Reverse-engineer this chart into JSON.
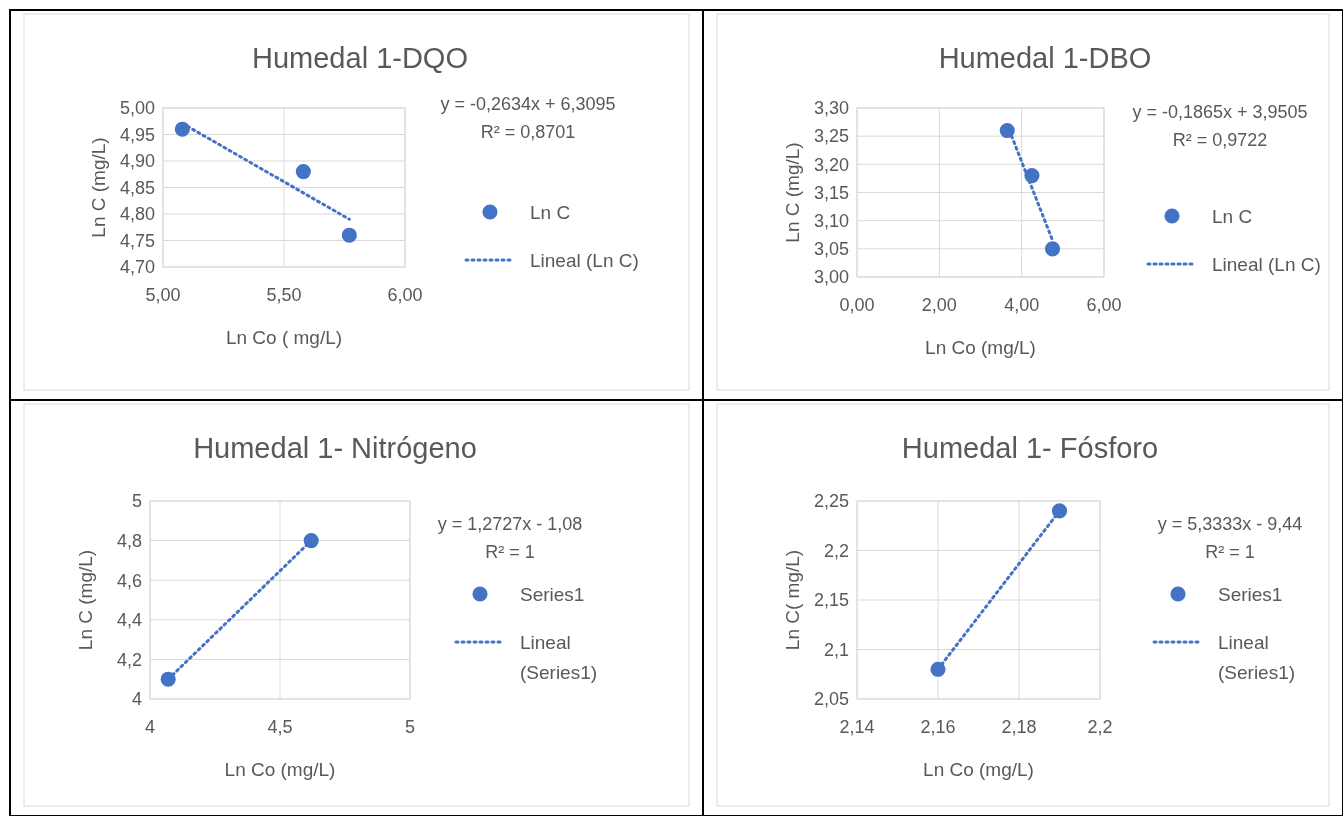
{
  "chart_data": [
    {
      "type": "scatter",
      "title": "Humedal 1-DQO",
      "xlabel": "Ln Co ( mg/L)",
      "ylabel": "Ln C (mg/L)",
      "annotations": [
        "y = -0,2634x + 6,3095",
        "R² = 0,8701"
      ],
      "xlim": [
        5,
        6
      ],
      "xticks": [
        {
          "value": 5,
          "label": "5,00"
        },
        {
          "value": 5.5,
          "label": "5,50"
        },
        {
          "value": 6,
          "label": "6,00"
        }
      ],
      "ylim": [
        4.7,
        5
      ],
      "yticks": [
        {
          "value": 4.7,
          "label": "4,70"
        },
        {
          "value": 4.75,
          "label": "4,75"
        },
        {
          "value": 4.8,
          "label": "4,80"
        },
        {
          "value": 4.85,
          "label": "4,85"
        },
        {
          "value": 4.9,
          "label": "4,90"
        },
        {
          "value": 4.95,
          "label": "4,95"
        },
        {
          "value": 5,
          "label": "5,00"
        }
      ],
      "grid": true,
      "legend": "right",
      "series": [
        {
          "name": "Ln C",
          "color": "#4472c4",
          "marker": "circle",
          "x": [
            5.08,
            5.58,
            5.77
          ],
          "values": [
            4.96,
            4.88,
            4.76
          ]
        },
        {
          "name": "Lineal (Ln C)",
          "type": "line",
          "color": "#4472c4",
          "marker": "none",
          "line_style": "dotted",
          "x": [
            5.08,
            5.77
          ],
          "values": [
            4.971,
            4.79
          ]
        }
      ]
    },
    {
      "type": "scatter",
      "title": "Humedal 1-DBO",
      "xlabel": "Ln Co (mg/L)",
      "ylabel": "Ln C (mg/L)",
      "annotations": [
        "y = -0,1865x + 3,9505",
        "R² = 0,9722"
      ],
      "xlim": [
        0,
        6
      ],
      "xticks": [
        {
          "value": 0,
          "label": "0,00"
        },
        {
          "value": 2,
          "label": "2,00"
        },
        {
          "value": 4,
          "label": "4,00"
        },
        {
          "value": 6,
          "label": "6,00"
        }
      ],
      "ylim": [
        3,
        3.3
      ],
      "yticks": [
        {
          "value": 3,
          "label": "3,00"
        },
        {
          "value": 3.05,
          "label": "3,05"
        },
        {
          "value": 3.1,
          "label": "3,10"
        },
        {
          "value": 3.15,
          "label": "3,15"
        },
        {
          "value": 3.2,
          "label": "3,20"
        },
        {
          "value": 3.25,
          "label": "3,25"
        },
        {
          "value": 3.3,
          "label": "3,30"
        }
      ],
      "grid": true,
      "legend": "right",
      "series": [
        {
          "name": "Ln C",
          "color": "#4472c4",
          "marker": "circle",
          "x": [
            3.65,
            4.25,
            4.75
          ],
          "values": [
            3.26,
            3.18,
            3.05
          ]
        },
        {
          "name": "Lineal (Ln C)",
          "type": "line",
          "color": "#4472c4",
          "marker": "none",
          "line_style": "dotted",
          "x": [
            3.65,
            4.75
          ],
          "values": [
            3.27,
            3.065
          ]
        }
      ]
    },
    {
      "type": "scatter",
      "title": "Humedal 1- Nitrógeno",
      "xlabel": "Ln Co (mg/L)",
      "ylabel": "Ln C (mg/L)",
      "annotations": [
        "y = 1,2727x - 1,08",
        "R² = 1"
      ],
      "xlim": [
        4,
        5
      ],
      "xticks": [
        4,
        {
          "value": 4.5,
          "label": "4,5"
        },
        5
      ],
      "ylim": [
        4,
        5
      ],
      "yticks": [
        4,
        {
          "value": 4.2,
          "label": "4,2"
        },
        {
          "value": 4.4,
          "label": "4,4"
        },
        {
          "value": 4.6,
          "label": "4,6"
        },
        {
          "value": 4.8,
          "label": "4,8"
        },
        5
      ],
      "grid": true,
      "legend": "right",
      "series": [
        {
          "name": "Series1",
          "color": "#4472c4",
          "marker": "circle",
          "x": [
            4.07,
            4.62
          ],
          "values": [
            4.1,
            4.8
          ]
        },
        {
          "name": "Lineal (Series1)",
          "type": "line",
          "color": "#4472c4",
          "marker": "none",
          "line_style": "dotted",
          "x": [
            4.07,
            4.62
          ],
          "values": [
            4.1,
            4.8
          ]
        }
      ]
    },
    {
      "type": "scatter",
      "title": "Humedal 1- Fósforo",
      "xlabel": "Ln Co (mg/L)",
      "ylabel": "Ln C( mg/L)",
      "annotations": [
        "y = 5,3333x - 9,44",
        "R² = 1"
      ],
      "xlim": [
        2.14,
        2.2
      ],
      "xticks": [
        {
          "value": 2.14,
          "label": "2,14"
        },
        {
          "value": 2.16,
          "label": "2,16"
        },
        {
          "value": 2.18,
          "label": "2,18"
        },
        {
          "value": 2.2,
          "label": "2,2"
        }
      ],
      "ylim": [
        2.05,
        2.25
      ],
      "yticks": [
        {
          "value": 2.05,
          "label": "2,05"
        },
        {
          "value": 2.1,
          "label": "2,1"
        },
        {
          "value": 2.15,
          "label": "2,15"
        },
        {
          "value": 2.2,
          "label": "2,2"
        },
        {
          "value": 2.25,
          "label": "2,25"
        }
      ],
      "grid": true,
      "legend": "right",
      "series": [
        {
          "name": "Series1",
          "color": "#4472c4",
          "marker": "circle",
          "x": [
            2.16,
            2.19
          ],
          "values": [
            2.08,
            2.24
          ]
        },
        {
          "name": "Lineal (Series1)",
          "type": "line",
          "color": "#4472c4",
          "marker": "none",
          "line_style": "dotted",
          "x": [
            2.16,
            2.19
          ],
          "values": [
            2.08,
            2.24
          ]
        }
      ]
    }
  ]
}
